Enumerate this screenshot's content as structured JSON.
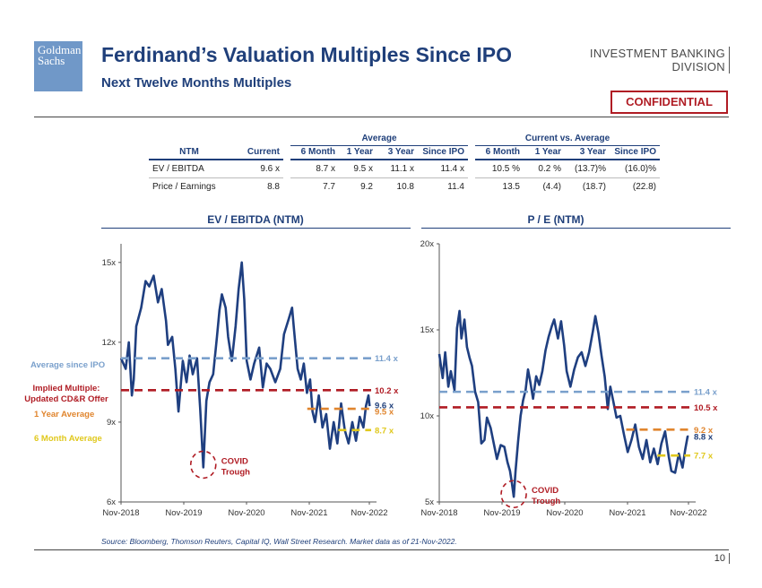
{
  "logo": {
    "line1": "Goldman",
    "line2": "Sachs"
  },
  "title": "Ferdinand’s Valuation Multiples Since IPO",
  "subtitle": "Next Twelve Months Multiples",
  "division": {
    "line1": "INVESTMENT BANKING",
    "line2": "DIVISION"
  },
  "confidential": "CONFIDENTIAL",
  "table": {
    "group_average": "Average",
    "group_current_vs": "Current vs. Average",
    "headers": [
      "NTM",
      "Current",
      "6 Month",
      "1 Year",
      "3 Year",
      "Since IPO",
      "6 Month",
      "1 Year",
      "3 Year",
      "Since IPO"
    ],
    "rows": [
      {
        "label": "EV / EBITDA",
        "current": "9.6 x",
        "avg_6m": "8.7 x",
        "avg_1y": "9.5 x",
        "avg_3y": "11.1 x",
        "avg_ipo": "11.4 x",
        "vs_6m": "10.5 %",
        "vs_1y": "0.2 %",
        "vs_3y": "(13.7)%",
        "vs_ipo": "(16.0)%"
      },
      {
        "label": "Price / Earnings",
        "current": "8.8",
        "avg_6m": "7.7",
        "avg_1y": "9.2",
        "avg_3y": "10.8",
        "avg_ipo": "11.4",
        "vs_6m": "13.5",
        "vs_1y": "(4.4)",
        "vs_3y": "(18.7)",
        "vs_ipo": "(22.8)"
      }
    ]
  },
  "charts": {
    "left_title": "EV / EBITDA (NTM)",
    "right_title": "P / E (NTM)"
  },
  "legend": {
    "avg_ipo": "Average since IPO",
    "implied": "Implied Multiple: Updated CD&R Offer",
    "implied_line1": "Implied Multiple:",
    "implied_line2": "Updated CD&R Offer",
    "one_year": "1 Year Average",
    "six_month": "6 Month Average"
  },
  "annotation": {
    "covid_line1": "COVID",
    "covid_line2": "Trough"
  },
  "colors": {
    "navy": "#1f3f7a",
    "series": "#1f3f80",
    "ipo": "#7aa0cc",
    "implied": "#b01c24",
    "one_year": "#e0852e",
    "six_month": "#e0c81c",
    "axis_labels_navy": "#1f3f7a"
  },
  "chart_data": [
    {
      "type": "line",
      "title": "EV / EBITDA (NTM)",
      "x_ticks": [
        "Nov-2018",
        "Nov-2019",
        "Nov-2020",
        "Nov-2021",
        "Nov-2022"
      ],
      "y_ticks": [
        "6x",
        "9x",
        "12x",
        "15x"
      ],
      "ylim": [
        6,
        15.7
      ],
      "xlim": [
        2018.875,
        2022.875
      ],
      "series": [
        {
          "name": "EV / EBITDA",
          "points": [
            [
              2018.875,
              11.4
            ],
            [
              2018.95,
              11.0
            ],
            [
              2019.0,
              12.0
            ],
            [
              2019.05,
              10.0
            ],
            [
              2019.08,
              10.6
            ],
            [
              2019.12,
              12.6
            ],
            [
              2019.2,
              13.3
            ],
            [
              2019.27,
              14.3
            ],
            [
              2019.33,
              14.1
            ],
            [
              2019.4,
              14.5
            ],
            [
              2019.47,
              13.5
            ],
            [
              2019.53,
              14.0
            ],
            [
              2019.6,
              12.8
            ],
            [
              2019.63,
              11.9
            ],
            [
              2019.7,
              12.2
            ],
            [
              2019.75,
              11.0
            ],
            [
              2019.8,
              9.4
            ],
            [
              2019.87,
              11.3
            ],
            [
              2019.93,
              10.5
            ],
            [
              2019.98,
              11.5
            ],
            [
              2020.03,
              10.8
            ],
            [
              2020.1,
              11.4
            ],
            [
              2020.15,
              9.5
            ],
            [
              2020.2,
              7.3
            ],
            [
              2020.25,
              9.8
            ],
            [
              2020.3,
              10.5
            ],
            [
              2020.36,
              10.8
            ],
            [
              2020.42,
              12.2
            ],
            [
              2020.46,
              13.2
            ],
            [
              2020.5,
              13.8
            ],
            [
              2020.56,
              13.3
            ],
            [
              2020.6,
              12.2
            ],
            [
              2020.66,
              11.3
            ],
            [
              2020.72,
              12.6
            ],
            [
              2020.77,
              14.0
            ],
            [
              2020.82,
              15.0
            ],
            [
              2020.86,
              13.6
            ],
            [
              2020.9,
              11.3
            ],
            [
              2020.96,
              10.6
            ],
            [
              2021.02,
              11.2
            ],
            [
              2021.1,
              11.8
            ],
            [
              2021.16,
              10.3
            ],
            [
              2021.22,
              11.2
            ],
            [
              2021.28,
              11.0
            ],
            [
              2021.36,
              10.5
            ],
            [
              2021.44,
              11.0
            ],
            [
              2021.5,
              12.3
            ],
            [
              2021.58,
              12.9
            ],
            [
              2021.63,
              13.3
            ],
            [
              2021.66,
              12.5
            ],
            [
              2021.72,
              11.0
            ],
            [
              2021.77,
              10.6
            ],
            [
              2021.82,
              11.2
            ],
            [
              2021.87,
              10.1
            ],
            [
              2021.92,
              10.6
            ],
            [
              2021.96,
              9.4
            ],
            [
              2022.0,
              9.0
            ],
            [
              2022.06,
              10.0
            ],
            [
              2022.12,
              8.8
            ],
            [
              2022.18,
              9.3
            ],
            [
              2022.24,
              8.0
            ],
            [
              2022.3,
              9.0
            ],
            [
              2022.36,
              8.2
            ],
            [
              2022.42,
              9.7
            ],
            [
              2022.48,
              8.7
            ],
            [
              2022.54,
              8.2
            ],
            [
              2022.6,
              9.0
            ],
            [
              2022.66,
              8.3
            ],
            [
              2022.72,
              9.2
            ],
            [
              2022.78,
              8.8
            ],
            [
              2022.82,
              9.6
            ],
            [
              2022.86,
              10.0
            ],
            [
              2022.88,
              9.6
            ]
          ]
        }
      ],
      "reference_lines": [
        {
          "name": "Average since IPO",
          "value": 11.4,
          "label": "11.4 x",
          "color": "#7aa0cc"
        },
        {
          "name": "Implied Multiple: Updated CD&R Offer",
          "value": 10.2,
          "label": "10.2 x",
          "color": "#b01c24"
        },
        {
          "name": "Current",
          "value": 9.6,
          "label": "9.6 x",
          "color": "#1f3f7a"
        },
        {
          "name": "1 Year Average",
          "value": 9.5,
          "label": "9.5 x",
          "color": "#e0852e",
          "start": 2021.875
        },
        {
          "name": "6 Month Average",
          "value": 8.7,
          "label": "8.7 x",
          "color": "#e0c81c",
          "start": 2022.375
        }
      ],
      "annotation": {
        "text": "COVID Trough",
        "x": 2020.2,
        "y": 7.3
      }
    },
    {
      "type": "line",
      "title": "P / E (NTM)",
      "x_ticks": [
        "Nov-2018",
        "Nov-2019",
        "Nov-2020",
        "Nov-2021",
        "Nov-2022"
      ],
      "y_ticks": [
        "5x",
        "10x",
        "15x",
        "20x"
      ],
      "ylim": [
        5,
        20
      ],
      "xlim": [
        2018.875,
        2022.875
      ],
      "series": [
        {
          "name": "P / E",
          "points": [
            [
              2018.875,
              13.6
            ],
            [
              2018.93,
              12.2
            ],
            [
              2018.97,
              13.7
            ],
            [
              2019.02,
              11.7
            ],
            [
              2019.06,
              12.6
            ],
            [
              2019.12,
              11.5
            ],
            [
              2019.16,
              15.1
            ],
            [
              2019.2,
              16.1
            ],
            [
              2019.23,
              14.5
            ],
            [
              2019.28,
              15.6
            ],
            [
              2019.32,
              14.0
            ],
            [
              2019.36,
              13.4
            ],
            [
              2019.4,
              12.9
            ],
            [
              2019.45,
              11.4
            ],
            [
              2019.5,
              10.8
            ],
            [
              2019.55,
              8.4
            ],
            [
              2019.6,
              8.6
            ],
            [
              2019.64,
              9.9
            ],
            [
              2019.7,
              9.3
            ],
            [
              2019.75,
              8.4
            ],
            [
              2019.8,
              7.5
            ],
            [
              2019.86,
              8.3
            ],
            [
              2019.92,
              8.2
            ],
            [
              2019.97,
              7.3
            ],
            [
              2020.01,
              6.8
            ],
            [
              2020.04,
              6.1
            ],
            [
              2020.07,
              5.3
            ],
            [
              2020.1,
              6.8
            ],
            [
              2020.14,
              8.5
            ],
            [
              2020.18,
              10.0
            ],
            [
              2020.22,
              10.9
            ],
            [
              2020.26,
              11.5
            ],
            [
              2020.3,
              12.7
            ],
            [
              2020.34,
              11.9
            ],
            [
              2020.38,
              11.0
            ],
            [
              2020.43,
              12.3
            ],
            [
              2020.48,
              11.8
            ],
            [
              2020.53,
              12.6
            ],
            [
              2020.58,
              13.8
            ],
            [
              2020.63,
              14.6
            ],
            [
              2020.68,
              15.2
            ],
            [
              2020.72,
              15.6
            ],
            [
              2020.78,
              14.5
            ],
            [
              2020.83,
              15.5
            ],
            [
              2020.88,
              14.1
            ],
            [
              2020.92,
              12.6
            ],
            [
              2020.98,
              11.7
            ],
            [
              2021.04,
              12.7
            ],
            [
              2021.1,
              13.4
            ],
            [
              2021.16,
              13.7
            ],
            [
              2021.22,
              12.9
            ],
            [
              2021.28,
              13.7
            ],
            [
              2021.34,
              14.9
            ],
            [
              2021.38,
              15.8
            ],
            [
              2021.43,
              14.8
            ],
            [
              2021.48,
              13.5
            ],
            [
              2021.53,
              12.3
            ],
            [
              2021.58,
              10.4
            ],
            [
              2021.62,
              11.7
            ],
            [
              2021.67,
              10.8
            ],
            [
              2021.72,
              9.9
            ],
            [
              2021.78,
              10.0
            ],
            [
              2021.84,
              8.9
            ],
            [
              2021.9,
              7.9
            ],
            [
              2021.96,
              8.6
            ],
            [
              2022.02,
              9.5
            ],
            [
              2022.08,
              8.2
            ],
            [
              2022.14,
              7.5
            ],
            [
              2022.2,
              8.6
            ],
            [
              2022.26,
              7.3
            ],
            [
              2022.32,
              8.1
            ],
            [
              2022.38,
              7.2
            ],
            [
              2022.44,
              8.4
            ],
            [
              2022.5,
              9.1
            ],
            [
              2022.56,
              7.6
            ],
            [
              2022.6,
              6.8
            ],
            [
              2022.66,
              6.7
            ],
            [
              2022.72,
              7.8
            ],
            [
              2022.78,
              7.0
            ],
            [
              2022.82,
              8.0
            ],
            [
              2022.86,
              8.8
            ],
            [
              2022.88,
              8.8
            ]
          ]
        }
      ],
      "reference_lines": [
        {
          "name": "Average since IPO",
          "value": 11.4,
          "label": "11.4 x",
          "color": "#7aa0cc"
        },
        {
          "name": "Implied Multiple: Updated CD&R Offer",
          "value": 10.5,
          "label": "10.5 x",
          "color": "#b01c24"
        },
        {
          "name": "1 Year Average",
          "value": 9.2,
          "label": "9.2 x",
          "color": "#e0852e",
          "start": 2021.875
        },
        {
          "name": "Current",
          "value": 8.8,
          "label": "8.8 x",
          "color": "#1f3f7a"
        },
        {
          "name": "6 Month Average",
          "value": 7.7,
          "label": "7.7 x",
          "color": "#e0c81c",
          "start": 2022.375
        }
      ],
      "annotation": {
        "text": "COVID Trough",
        "x": 2020.07,
        "y": 5.3
      }
    }
  ],
  "source": "Source: Bloomberg, Thomson Reuters, Capital IQ, Wall Street Research. Market data as of 21-Nov-2022.",
  "page_number": "10"
}
